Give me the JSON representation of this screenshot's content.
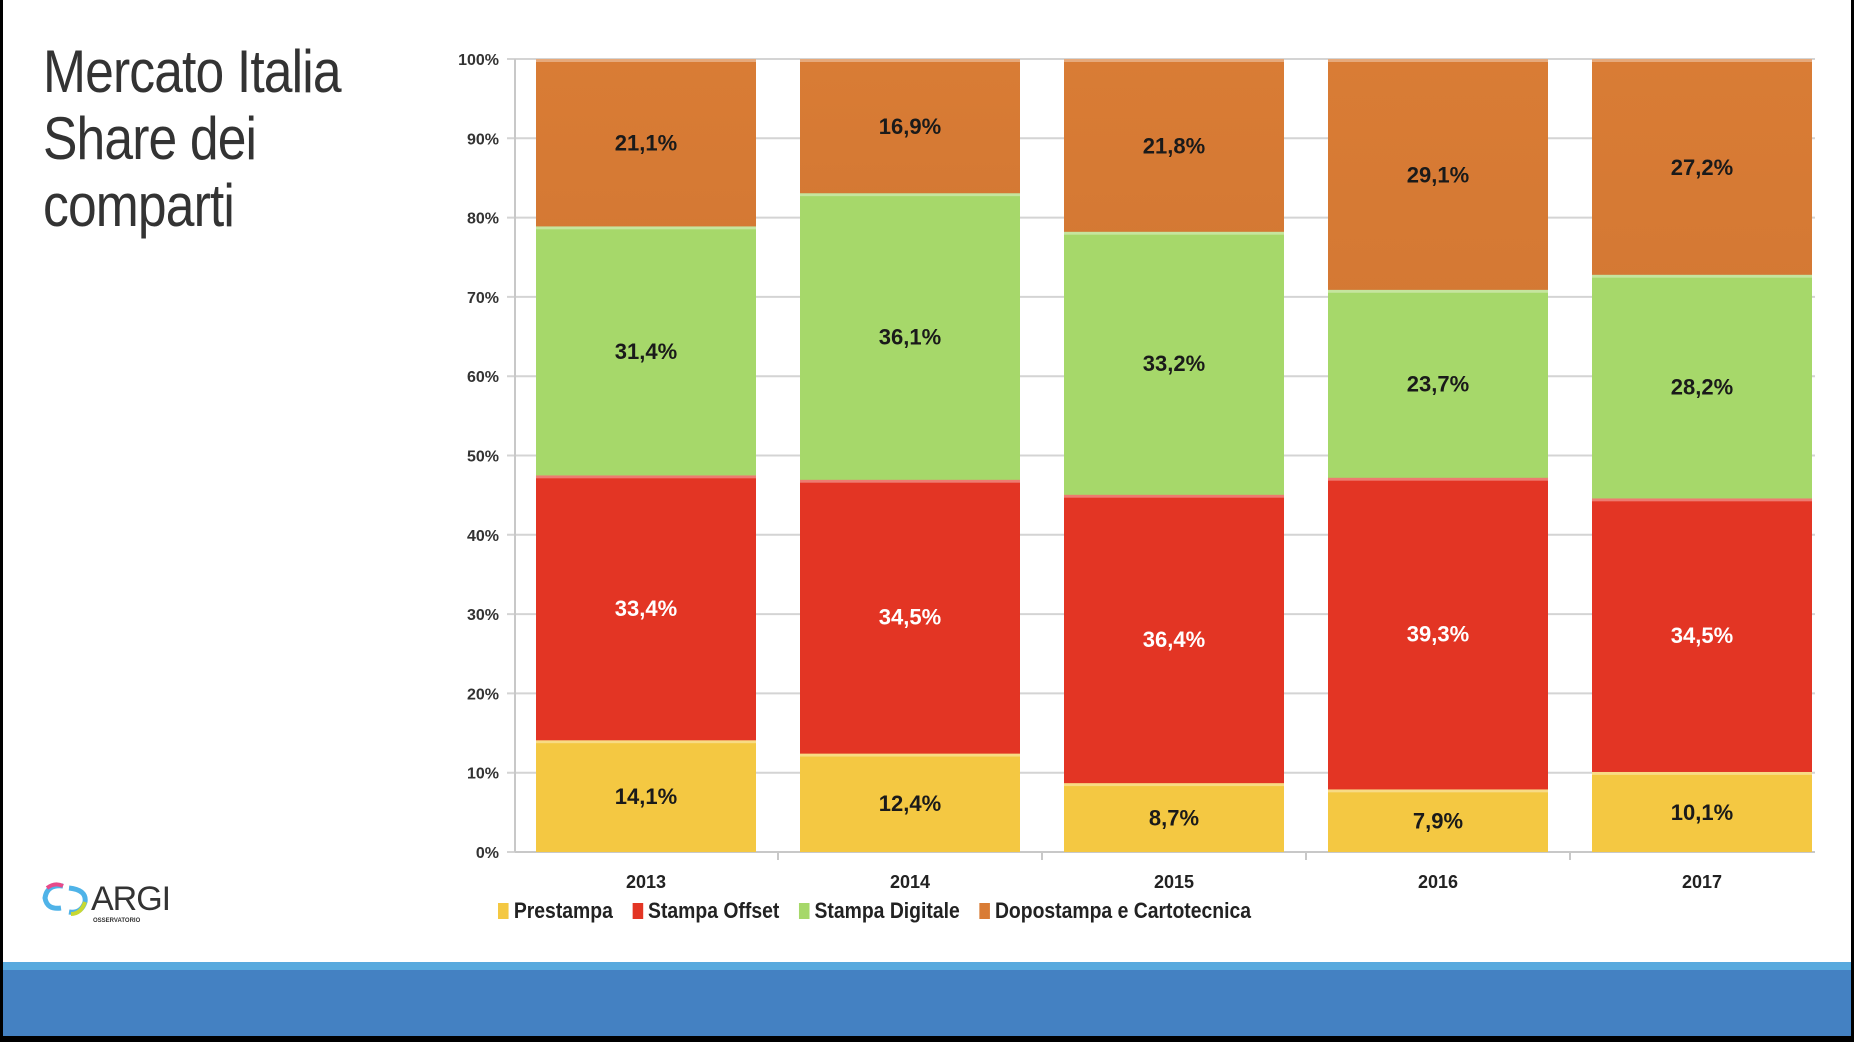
{
  "title_lines": [
    "Mercato Italia",
    "Share dei",
    "comparti"
  ],
  "logo": {
    "text": "ARGI",
    "subtext": "OSSERVATORIO"
  },
  "chart_data": {
    "type": "bar",
    "stacked": true,
    "categories": [
      "2013",
      "2014",
      "2015",
      "2016",
      "2017"
    ],
    "series": [
      {
        "name": "Prestampa",
        "color": "#f4c842",
        "values": [
          14.1,
          12.4,
          8.7,
          7.9,
          10.1
        ],
        "labels": [
          "14,1%",
          "12,4%",
          "8,7%",
          "7,9%",
          "10,1%"
        ]
      },
      {
        "name": "Stampa Offset",
        "color": "#e33524",
        "values": [
          33.4,
          34.5,
          36.4,
          39.3,
          34.5
        ],
        "labels": [
          "33,4%",
          "34,5%",
          "36,4%",
          "39,3%",
          "34,5%"
        ]
      },
      {
        "name": "Stampa Digitale",
        "color": "#a6d86a",
        "values": [
          31.4,
          36.1,
          33.2,
          23.7,
          28.2
        ],
        "labels": [
          "31,4%",
          "36,1%",
          "33,2%",
          "23,7%",
          "28,2%"
        ]
      },
      {
        "name": "Dopostampa e Cartotecnica",
        "color": "#d97c35",
        "values": [
          21.1,
          16.9,
          21.8,
          29.1,
          27.2
        ],
        "labels": [
          "21,1%",
          "16,9%",
          "21,8%",
          "29,1%",
          "27,2%"
        ]
      }
    ],
    "yticks": [
      "0%",
      "10%",
      "20%",
      "30%",
      "40%",
      "50%",
      "60%",
      "70%",
      "80%",
      "90%",
      "100%"
    ],
    "ylim": [
      0,
      100
    ],
    "grid": true,
    "legend": "bottom"
  }
}
